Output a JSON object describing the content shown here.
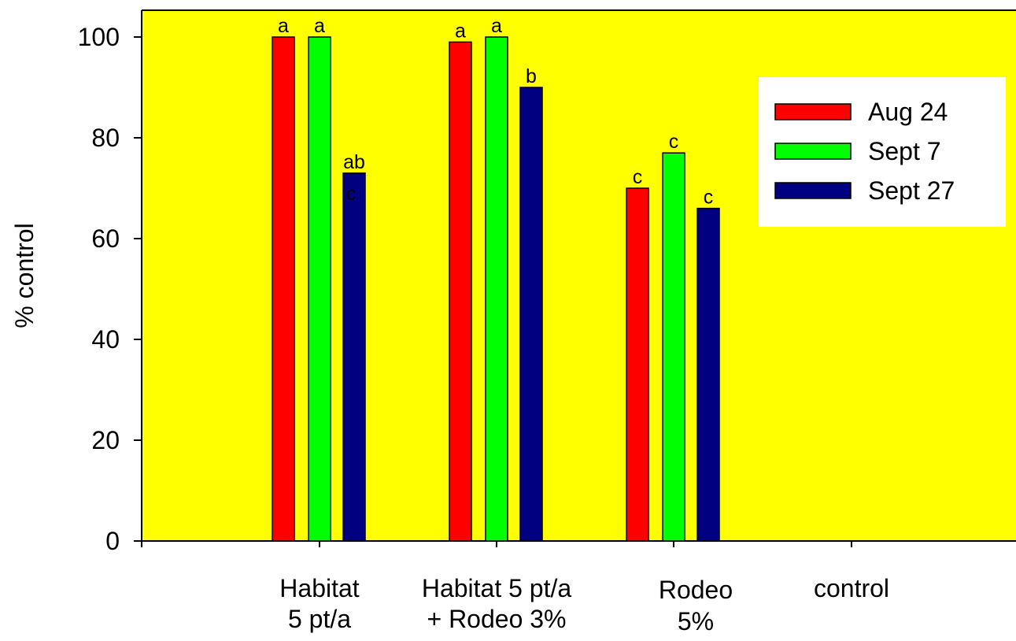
{
  "chart_data": {
    "type": "bar",
    "ylabel": "% control",
    "ylim": [
      0,
      105
    ],
    "yticks": [
      0,
      20,
      40,
      60,
      80,
      100
    ],
    "grid": false,
    "legend_position": "top-right",
    "plot_background": "#ffff00",
    "categories": [
      [
        "Habitat",
        "5 pt/a"
      ],
      [
        "Habitat 5 pt/a",
        "+ Rodeo 3%"
      ],
      [
        "Rodeo",
        "5%"
      ],
      [
        "control"
      ]
    ],
    "series": [
      {
        "name": "Aug 24",
        "color": "#ff0000",
        "values": [
          100,
          99,
          70,
          null
        ],
        "labels": [
          "a",
          "a",
          "c",
          ""
        ]
      },
      {
        "name": "Sept 7",
        "color": "#00ff00",
        "values": [
          100,
          100,
          77,
          null
        ],
        "labels": [
          "a",
          "a",
          "c",
          ""
        ]
      },
      {
        "name": "Sept 27",
        "color": "#000080",
        "values": [
          73,
          90,
          66,
          null
        ],
        "labels": [
          "ab",
          "b",
          "c",
          ""
        ]
      }
    ],
    "annotations": [
      {
        "category_index": 0,
        "series_index": 2,
        "text": "c"
      }
    ]
  }
}
